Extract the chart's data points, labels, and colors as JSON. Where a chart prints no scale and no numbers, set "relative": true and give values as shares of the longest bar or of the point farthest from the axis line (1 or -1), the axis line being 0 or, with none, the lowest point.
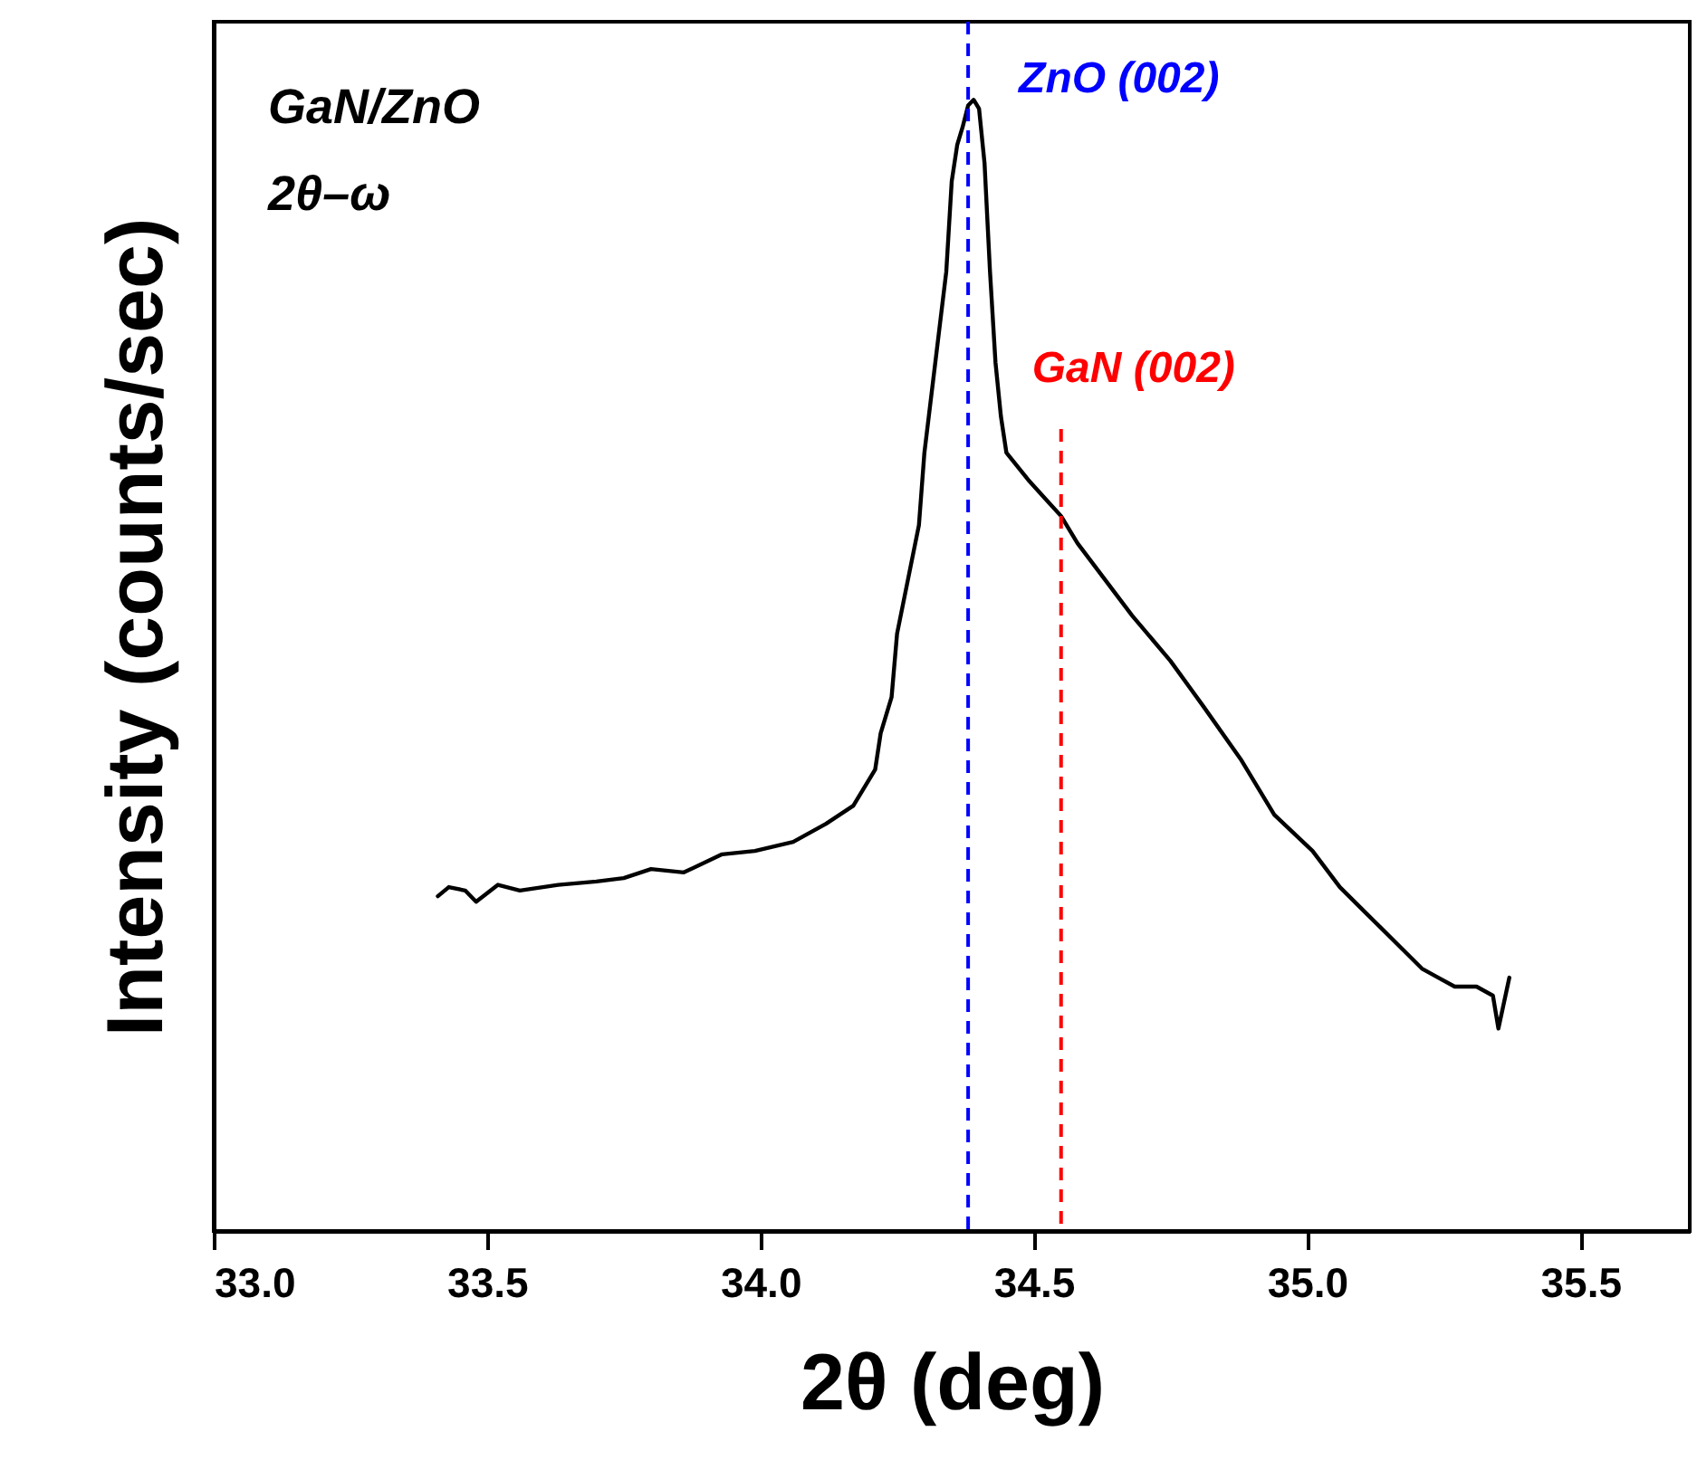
{
  "chart_data": {
    "type": "line",
    "relative": true,
    "xlabel": "2θ (deg)",
    "ylabel": "Intensity (counts/sec)",
    "annotations": [
      "GaN/ZnO",
      "2θ–ω"
    ],
    "xlim": [
      33,
      35.7
    ],
    "xticks": [
      {
        "value": 33,
        "label": "33.0"
      },
      {
        "value": 33.5,
        "label": "33.5"
      },
      {
        "value": 34,
        "label": "34.0"
      },
      {
        "value": 34.5,
        "label": "34.5"
      },
      {
        "value": 35,
        "label": "35.0"
      },
      {
        "value": 35.5,
        "label": "35.5"
      }
    ],
    "ref_lines": [
      {
        "axis": "x",
        "value": 34.38,
        "label": "ZnO (002)",
        "color": "#0000ff",
        "line_style": "dashed"
      },
      {
        "axis": "x",
        "value": 34.55,
        "label": "GaN (002)",
        "color": "#ff0000",
        "line_style": "dashed"
      }
    ],
    "series": [
      {
        "color": "#000000",
        "line_style": "solid",
        "marker": "none",
        "x": [
          33.41,
          33.43,
          33.46,
          33.48,
          33.52,
          33.56,
          33.63,
          33.7,
          33.75,
          33.8,
          33.86,
          33.93,
          33.99,
          34.06,
          34.12,
          34.17,
          34.21,
          34.22,
          34.24,
          34.25,
          34.27,
          34.29,
          34.3,
          34.32,
          34.34,
          34.35,
          34.36,
          34.37,
          34.38,
          34.39,
          34.4,
          34.41,
          34.42,
          34.43,
          34.44,
          34.45,
          34.49,
          34.52,
          34.55,
          34.58,
          34.63,
          34.68,
          34.75,
          34.81,
          34.88,
          34.94,
          35.01,
          35.06,
          35.11,
          35.16,
          35.21,
          35.24,
          35.27,
          35.31,
          35.34,
          35.35,
          35.37
        ],
        "values": [
          0.296,
          0.304,
          0.301,
          0.291,
          0.306,
          0.301,
          0.306,
          0.309,
          0.312,
          0.32,
          0.317,
          0.333,
          0.336,
          0.344,
          0.36,
          0.376,
          0.408,
          0.44,
          0.472,
          0.528,
          0.576,
          0.624,
          0.688,
          0.768,
          0.848,
          0.928,
          0.96,
          0.976,
          0.995,
          1.0,
          0.992,
          0.944,
          0.848,
          0.768,
          0.72,
          0.688,
          0.664,
          0.648,
          0.632,
          0.608,
          0.576,
          0.544,
          0.504,
          0.464,
          0.416,
          0.368,
          0.336,
          0.304,
          0.28,
          0.256,
          0.232,
          0.224,
          0.216,
          0.216,
          0.208,
          0.179,
          0.224
        ]
      }
    ]
  }
}
